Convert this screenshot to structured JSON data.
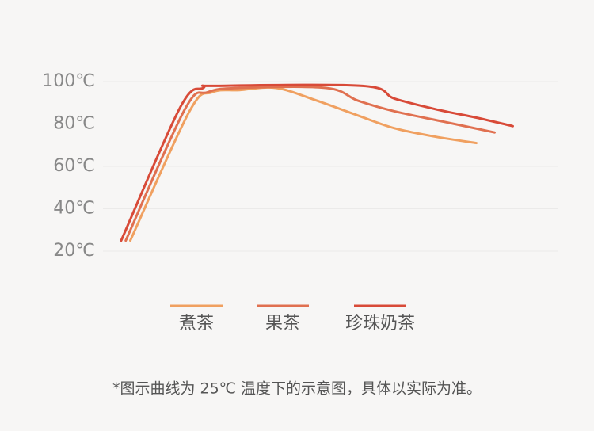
{
  "chart_data": {
    "type": "line",
    "xlim": [
      0,
      100
    ],
    "ylim": [
      20,
      100
    ],
    "yticks": [
      {
        "value": 100,
        "label": "100℃"
      },
      {
        "value": 80,
        "label": "80℃"
      },
      {
        "value": 60,
        "label": "60℃"
      },
      {
        "value": 40,
        "label": "40℃"
      },
      {
        "value": 20,
        "label": "20℃"
      }
    ],
    "grid": true,
    "legend": "bottom",
    "series": [
      {
        "name": "煮茶",
        "color": "#f0a060",
        "x": [
          6,
          19,
          24,
          30,
          38,
          47,
          56,
          64,
          73,
          82
        ],
        "values": [
          25,
          86,
          95,
          96,
          97,
          91,
          84,
          78,
          74,
          71
        ]
      },
      {
        "name": "果茶",
        "color": "#e07050",
        "x": [
          5,
          18,
          23,
          30,
          49,
          56,
          64,
          75,
          86
        ],
        "values": [
          25,
          87,
          95,
          97,
          97,
          91,
          86,
          81,
          76
        ]
      },
      {
        "name": "珍珠奶茶",
        "color": "#d84a38",
        "x": [
          4,
          17,
          22,
          25,
          57,
          64,
          73,
          82,
          90
        ],
        "values": [
          25,
          88,
          97,
          98,
          98,
          92,
          87,
          83,
          79
        ]
      }
    ],
    "footnote": "*图示曲线为 25℃ 温度下的示意图，具体以实际为准。"
  }
}
